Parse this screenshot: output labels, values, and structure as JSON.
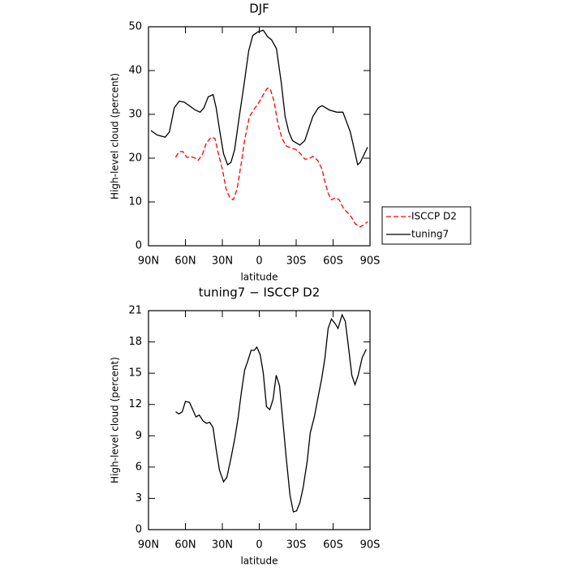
{
  "chart_data": [
    {
      "type": "line",
      "title": "DJF",
      "xlabel": "latitude",
      "ylabel": "High-level cloud (percent)",
      "xlim": [
        90,
        -90
      ],
      "xticks": [
        {
          "value": 90,
          "label": "90N"
        },
        {
          "value": 60,
          "label": "60N"
        },
        {
          "value": 30,
          "label": "30N"
        },
        0,
        {
          "value": -30,
          "label": "30S"
        },
        {
          "value": -60,
          "label": "60S"
        },
        {
          "value": -90,
          "label": "90S"
        }
      ],
      "ylim": [
        0,
        50
      ],
      "yticks": [
        0,
        10,
        20,
        30,
        40,
        50
      ],
      "legend": "outside-right",
      "series": [
        {
          "name": "ISCCP D2",
          "color": "#ff0000",
          "dash": "dashed",
          "x": [
            68,
            65,
            62,
            59,
            55,
            52,
            49.5,
            46,
            43,
            39,
            36,
            33.6,
            30,
            27,
            24,
            21,
            18,
            14.5,
            12,
            8,
            4.6,
            0.7,
            -3.3,
            -6.6,
            -9,
            -12,
            -15,
            -18.5,
            -21.8,
            -25.7,
            -29.7,
            -33.6,
            -37,
            -40,
            -43.5,
            -47.5,
            -51,
            -53,
            -56,
            -58.7,
            -62,
            -65,
            -68.5,
            -72,
            -75,
            -78,
            -82,
            -85,
            -88
          ],
          "values": [
            20.2,
            21.5,
            21.5,
            20.2,
            20.3,
            20,
            19.5,
            21,
            23.5,
            24.8,
            24.5,
            21.5,
            17.5,
            13,
            11,
            10.5,
            13,
            19,
            24,
            29.5,
            31,
            32.5,
            34.5,
            36,
            35.8,
            33,
            28,
            24.5,
            22.8,
            22.3,
            22,
            21,
            19.8,
            19.8,
            20.4,
            19.5,
            17.5,
            15,
            12,
            10.5,
            11,
            10.5,
            8.5,
            7.5,
            6.5,
            5,
            4.3,
            4.8,
            5.5
          ]
        },
        {
          "name": "tuning7",
          "color": "#000000",
          "dash": "solid",
          "x": [
            88,
            83,
            76.5,
            73,
            69,
            65,
            61,
            57,
            52,
            48,
            45,
            41.5,
            37.5,
            35,
            32,
            29,
            25.7,
            23,
            20,
            16.5,
            12.5,
            8.6,
            5.3,
            1.3,
            -3.3,
            -6.6,
            -10,
            -14,
            -18,
            -21,
            -24,
            -27,
            -33,
            -37,
            -43.5,
            -48,
            -51,
            -57,
            -63,
            -68,
            -74,
            -78,
            -80,
            -82,
            -88
          ],
          "values": [
            26.3,
            25.3,
            24.8,
            26,
            31.5,
            33,
            32.8,
            32,
            31,
            30.5,
            31.5,
            34,
            34.5,
            31.5,
            26,
            21,
            18.5,
            19,
            22,
            29,
            36.5,
            44.5,
            48,
            48.8,
            49.2,
            47.8,
            47,
            45,
            37,
            29.5,
            26,
            24,
            23,
            24,
            29.5,
            31.5,
            32,
            31,
            30.5,
            30.5,
            26,
            21,
            18.5,
            19,
            22.5
          ]
        }
      ]
    },
    {
      "type": "line",
      "title": "tuning7 − ISCCP D2",
      "xlabel": "latitude",
      "ylabel": "High-level cloud (percent)",
      "xlim": [
        90,
        -90
      ],
      "xticks": [
        {
          "value": 90,
          "label": "90N"
        },
        {
          "value": 60,
          "label": "60N"
        },
        {
          "value": 30,
          "label": "30N"
        },
        0,
        {
          "value": -30,
          "label": "30S"
        },
        {
          "value": -60,
          "label": "60S"
        },
        {
          "value": -90,
          "label": "90S"
        }
      ],
      "ylim": [
        0,
        21
      ],
      "yticks": [
        0,
        3,
        6,
        9,
        12,
        15,
        18,
        21
      ],
      "series": [
        {
          "color": "#000000",
          "dash": "solid",
          "x": [
            67.9,
            65.3,
            62.6,
            60,
            56.7,
            54,
            51.4,
            48.8,
            45.5,
            42.9,
            40.2,
            37.6,
            35,
            32.3,
            29,
            26.4,
            23.1,
            19.8,
            17.1,
            14.5,
            11.9,
            9.2,
            6.6,
            4,
            2,
            -0.7,
            -3.3,
            -5.9,
            -8.6,
            -11.2,
            -13.8,
            -16.5,
            -19.1,
            -21.8,
            -25,
            -27.7,
            -30.3,
            -33,
            -35.6,
            -38.9,
            -41.5,
            -44.8,
            -47.5,
            -50.8,
            -53.4,
            -56,
            -58.7,
            -62,
            -64,
            -67.3,
            -69.9,
            -72.5,
            -75.2,
            -77.8,
            -80.4,
            -83.7,
            -87
          ],
          "values": [
            11.3,
            11.1,
            11.3,
            12.3,
            12.2,
            11.5,
            10.8,
            11,
            10.4,
            10.2,
            10.3,
            9.8,
            7.7,
            5.7,
            4.6,
            5,
            6.8,
            8.8,
            10.8,
            13.2,
            15.3,
            16.2,
            17.2,
            17.2,
            17.5,
            16.8,
            15,
            11.8,
            11.5,
            12.5,
            14.8,
            13.8,
            10.5,
            7,
            3.3,
            1.7,
            1.8,
            2.6,
            4,
            6.5,
            9.3,
            10.8,
            12.5,
            14.5,
            16.5,
            19.3,
            20.2,
            19.7,
            19.3,
            20.6,
            20,
            17.5,
            14.8,
            13.9,
            14.8,
            16.5,
            17.3
          ]
        }
      ]
    }
  ]
}
